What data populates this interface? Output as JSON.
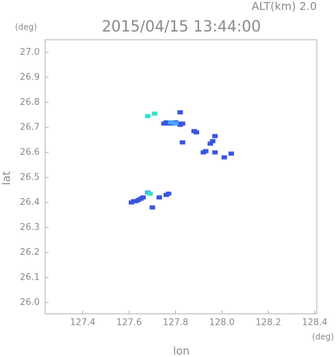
{
  "chart_data": {
    "type": "scatter",
    "title": "2015/04/15 13:44:00",
    "subtitle": "ALT(km) 2.0",
    "x_label": "lon",
    "y_label": "lat",
    "x_unit": "(deg)",
    "y_unit": "(deg)",
    "xlim": [
      127.238,
      128.409
    ],
    "ylim": [
      25.955,
      27.05
    ],
    "xticks": [
      127.4,
      127.6,
      127.8,
      {
        "value": 128.0,
        "label": "128.0"
      },
      128.2,
      128.4
    ],
    "yticks": [
      {
        "value": 26.0,
        "label": "26.0"
      },
      26.1,
      26.2,
      26.3,
      26.4,
      26.5,
      26.6,
      26.7,
      26.8,
      26.9,
      {
        "value": 27.0,
        "label": "27.0"
      }
    ],
    "points": [
      {
        "color": "#3a55e0",
        "x": [
          127.75,
          127.77,
          127.79,
          127.81,
          127.83,
          127.76,
          127.8,
          127.82,
          127.88,
          127.89,
          127.83,
          127.97,
          127.96,
          127.95,
          127.93,
          127.92,
          127.97,
          128.04,
          128.01,
          127.61,
          127.62,
          127.63,
          127.64,
          127.65,
          127.66,
          127.73,
          127.76,
          127.77,
          127.7,
          127.82
        ],
        "y": [
          26.715,
          26.715,
          26.715,
          26.715,
          26.715,
          26.72,
          26.72,
          26.71,
          26.685,
          26.68,
          26.64,
          26.665,
          26.645,
          26.635,
          26.605,
          26.6,
          26.6,
          26.595,
          26.58,
          26.4,
          26.405,
          26.405,
          26.41,
          26.415,
          26.42,
          26.42,
          26.43,
          26.435,
          26.38,
          26.76
        ]
      },
      {
        "color": "#4aa8ff",
        "x": [
          127.78,
          127.8,
          127.68
        ],
        "y": [
          26.72,
          26.715,
          26.44
        ]
      },
      {
        "color": "#36e0d0",
        "x": [
          127.68,
          127.71,
          127.69
        ],
        "y": [
          26.745,
          26.755,
          26.435
        ]
      }
    ]
  }
}
